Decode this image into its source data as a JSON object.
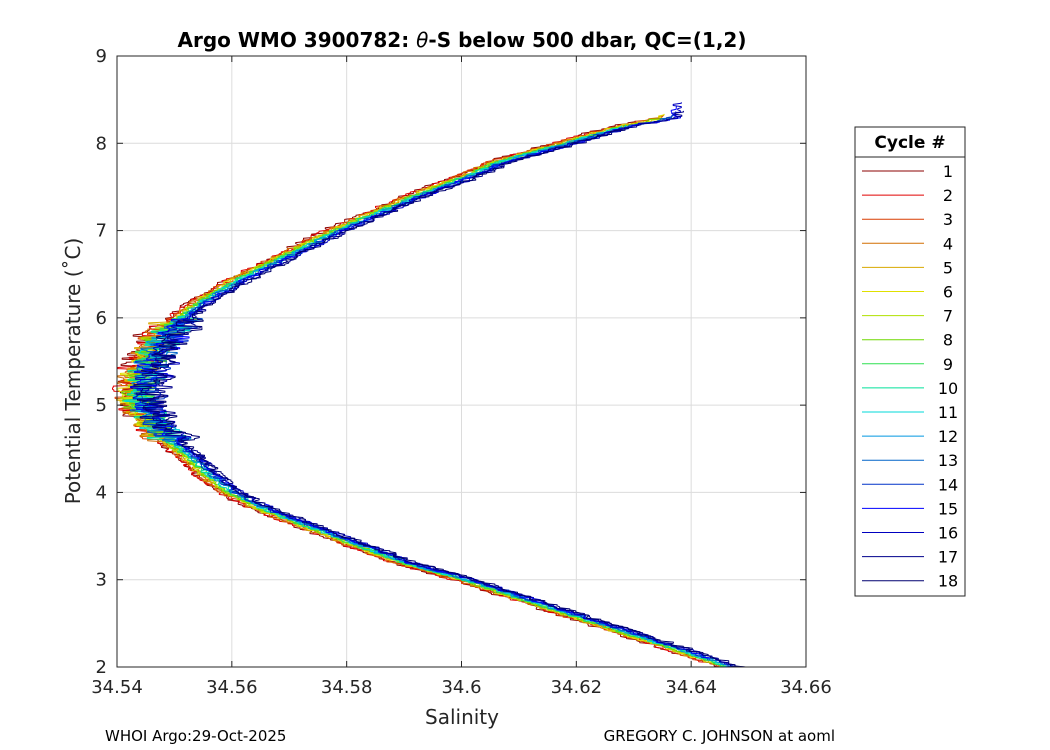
{
  "chart_data": {
    "type": "line",
    "title_prefix": "Argo WMO 3900782: ",
    "title_theta": "θ",
    "title_suffix": "-S below 500 dbar,  QC=(1,2)",
    "xlabel": "Salinity",
    "ylabel": "Potential Temperature (˚C)",
    "xlim": [
      34.54,
      34.66
    ],
    "ylim": [
      2,
      9
    ],
    "xticks": [
      34.54,
      34.56,
      34.58,
      34.6,
      34.62,
      34.64,
      34.66
    ],
    "xtick_labels": [
      "34.54",
      "34.56",
      "34.58",
      "34.6",
      "34.62",
      "34.64",
      "34.66"
    ],
    "yticks": [
      2,
      3,
      4,
      5,
      6,
      7,
      8,
      9
    ],
    "ytick_labels": [
      "2",
      "3",
      "4",
      "5",
      "6",
      "7",
      "8",
      "9"
    ],
    "grid": true,
    "legend_title": "Cycle #",
    "legend_position": "outside-right",
    "mean_profile": {
      "theta": [
        2.0,
        2.2,
        2.5,
        2.8,
        3.0,
        3.2,
        3.5,
        3.8,
        4.0,
        4.2,
        4.4,
        4.6,
        4.8,
        5.0,
        5.2,
        5.4,
        5.6,
        5.8,
        6.0,
        6.2,
        6.4,
        6.6,
        6.8,
        7.0,
        7.2,
        7.4,
        7.6,
        7.8,
        8.0,
        8.2,
        8.3
      ],
      "salinity": [
        34.647,
        34.638,
        34.624,
        34.61,
        34.601,
        34.59,
        34.578,
        34.566,
        34.56,
        34.556,
        34.553,
        34.549,
        34.546,
        34.544,
        34.544,
        34.545,
        34.546,
        34.548,
        34.551,
        34.555,
        34.56,
        34.566,
        34.572,
        34.578,
        34.585,
        34.592,
        34.6,
        34.607,
        34.618,
        34.628,
        34.636
      ]
    },
    "series": [
      {
        "name": "1",
        "color": "#8b0000"
      },
      {
        "name": "2",
        "color": "#e00000"
      },
      {
        "name": "3",
        "color": "#d83c00"
      },
      {
        "name": "4",
        "color": "#d26e00"
      },
      {
        "name": "5",
        "color": "#d8a800"
      },
      {
        "name": "6",
        "color": "#e0e000"
      },
      {
        "name": "7",
        "color": "#b0e000"
      },
      {
        "name": "8",
        "color": "#6ed800"
      },
      {
        "name": "9",
        "color": "#2ee050"
      },
      {
        "name": "10",
        "color": "#00e09a"
      },
      {
        "name": "11",
        "color": "#00d8d8"
      },
      {
        "name": "12",
        "color": "#0096e0"
      },
      {
        "name": "13",
        "color": "#0064c8"
      },
      {
        "name": "14",
        "color": "#0032c8"
      },
      {
        "name": "15",
        "color": "#0000ff"
      },
      {
        "name": "16",
        "color": "#0000c0"
      },
      {
        "name": "17",
        "color": "#00008b"
      },
      {
        "name": "18",
        "color": "#000070"
      }
    ]
  },
  "footer": {
    "left": "WHOI Argo:29-Oct-2025",
    "right": "GREGORY C. JOHNSON at aoml"
  }
}
